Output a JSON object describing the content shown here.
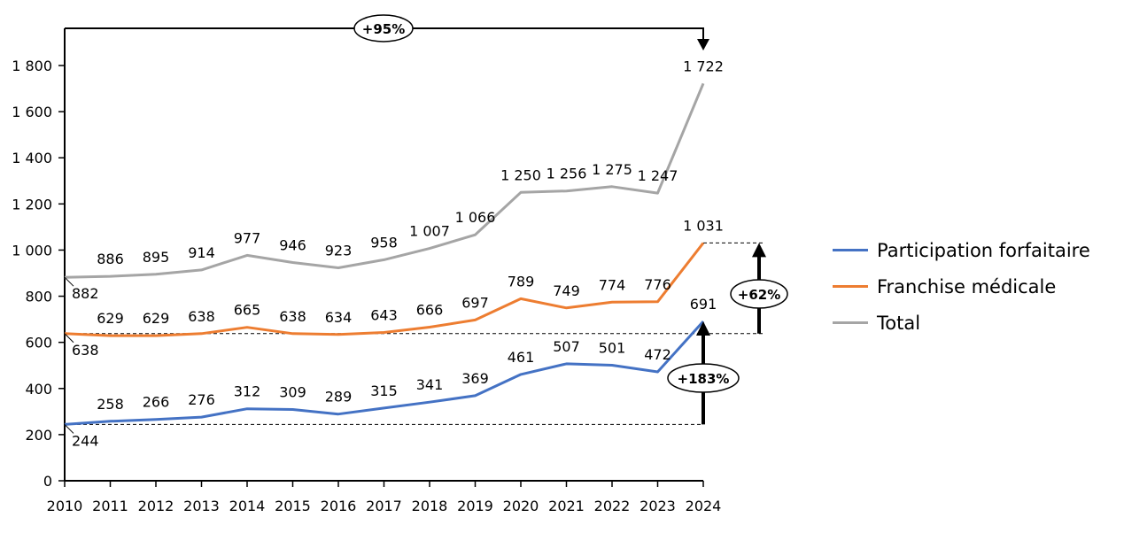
{
  "chart_data": {
    "type": "line",
    "title": "",
    "xlabel": "",
    "ylabel": "",
    "x": [
      "2010",
      "2011",
      "2012",
      "2013",
      "2014",
      "2015",
      "2016",
      "2017",
      "2018",
      "2019",
      "2020",
      "2021",
      "2022",
      "2023",
      "2024"
    ],
    "ylim": [
      0,
      1800
    ],
    "y_ticks": [
      0,
      200,
      400,
      600,
      800,
      1000,
      1200,
      1400,
      1600,
      1800
    ],
    "y_tick_labels": [
      "0",
      "200",
      "400",
      "600",
      "800",
      "1 000",
      "1 200",
      "1 400",
      "1 600",
      "1 800"
    ],
    "grid": false,
    "legend_position": "right",
    "series": [
      {
        "name": "Participation forfaitaire",
        "color": "#4472C4",
        "values": [
          244,
          258,
          266,
          276,
          312,
          309,
          289,
          315,
          341,
          369,
          461,
          507,
          501,
          472,
          691
        ],
        "labels": [
          "244",
          "258",
          "266",
          "276",
          "312",
          "309",
          "289",
          "315",
          "341",
          "369",
          "461",
          "507",
          "501",
          "472",
          "691"
        ]
      },
      {
        "name": "Franchise médicale",
        "color": "#ED7D31",
        "values": [
          638,
          629,
          629,
          638,
          665,
          638,
          634,
          643,
          666,
          697,
          789,
          749,
          774,
          776,
          1031
        ],
        "labels": [
          "638",
          "629",
          "629",
          "638",
          "665",
          "638",
          "634",
          "643",
          "666",
          "697",
          "789",
          "749",
          "774",
          "776",
          "1 031"
        ]
      },
      {
        "name": "Total",
        "color": "#A5A5A5",
        "values": [
          882,
          886,
          895,
          914,
          977,
          946,
          923,
          958,
          1007,
          1066,
          1250,
          1256,
          1275,
          1247,
          1722
        ],
        "labels": [
          "882",
          "886",
          "895",
          "914",
          "977",
          "946",
          "923",
          "958",
          "1 007",
          "1 066",
          "1 250",
          "1 256",
          "1 275",
          "1 247",
          "1 722"
        ]
      }
    ],
    "annotations": [
      {
        "text": "+95%",
        "series": "Total",
        "from": "2010",
        "to": "2024"
      },
      {
        "text": "+62%",
        "series": "Franchise médicale",
        "from": "2010",
        "to": "2024"
      },
      {
        "text": "+183%",
        "series": "Participation forfaitaire",
        "from": "2010",
        "to": "2024"
      }
    ]
  }
}
